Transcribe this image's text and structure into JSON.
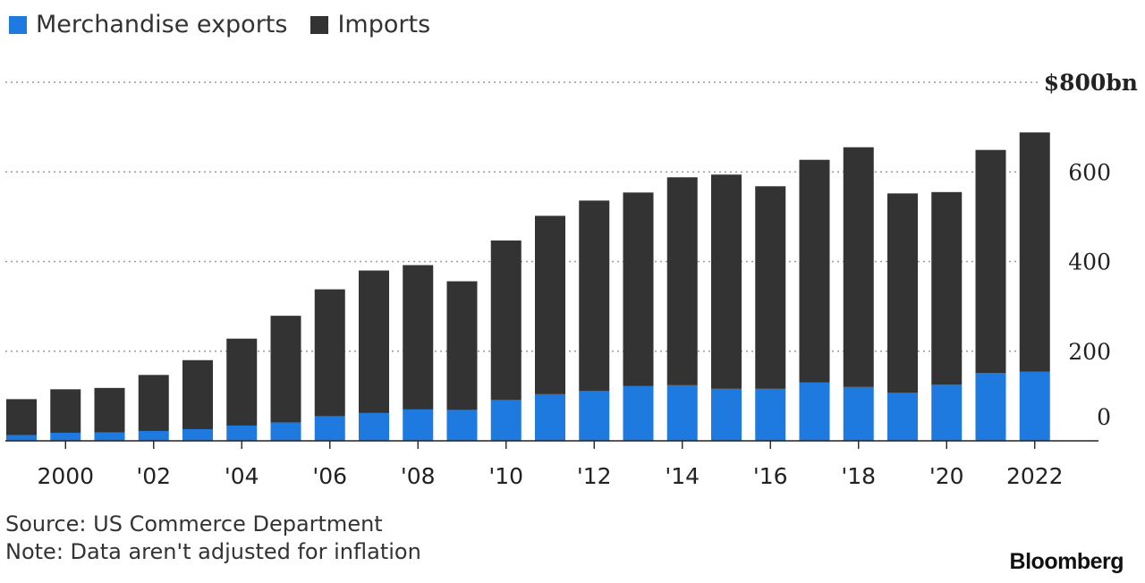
{
  "legend": [
    {
      "label": "Merchandise exports",
      "color": "#1f7ae0"
    },
    {
      "label": "Imports",
      "color": "#333333"
    }
  ],
  "chart_data": {
    "type": "bar",
    "stacked": true,
    "x": [
      1999,
      2000,
      2001,
      2002,
      2003,
      2004,
      2005,
      2006,
      2007,
      2008,
      2009,
      2010,
      2011,
      2012,
      2013,
      2014,
      2015,
      2016,
      2017,
      2018,
      2019,
      2020,
      2021,
      2022
    ],
    "series": [
      {
        "name": "Merchandise exports",
        "color": "#1f7ae0",
        "values": [
          13,
          18,
          19,
          22,
          26,
          34,
          41,
          55,
          62,
          70,
          69,
          91,
          104,
          111,
          122,
          124,
          116,
          116,
          130,
          120,
          107,
          125,
          151,
          154
        ]
      },
      {
        "name": "Imports",
        "color": "#333333",
        "values": [
          80,
          97,
          99,
          125,
          154,
          194,
          238,
          283,
          318,
          322,
          287,
          356,
          398,
          425,
          432,
          464,
          478,
          452,
          497,
          535,
          445,
          430,
          498,
          534
        ]
      }
    ],
    "ylim": [
      0,
      800
    ],
    "yticks": [
      0,
      200,
      400,
      600,
      800
    ],
    "ytick_labels": [
      "0",
      "200",
      "400",
      "600",
      "$800bn"
    ],
    "xticks": [
      2000,
      2002,
      2004,
      2006,
      2008,
      2010,
      2012,
      2014,
      2016,
      2018,
      2020,
      2022
    ],
    "xtick_labels": [
      "2000",
      "'02",
      "'04",
      "'06",
      "'08",
      "'10",
      "'12",
      "'14",
      "'16",
      "'18",
      "'20",
      "2022"
    ],
    "grid": true
  },
  "footer": {
    "source": "Source: US Commerce Department",
    "note": "Note: Data aren't adjusted for inflation"
  },
  "brand": "Bloomberg"
}
